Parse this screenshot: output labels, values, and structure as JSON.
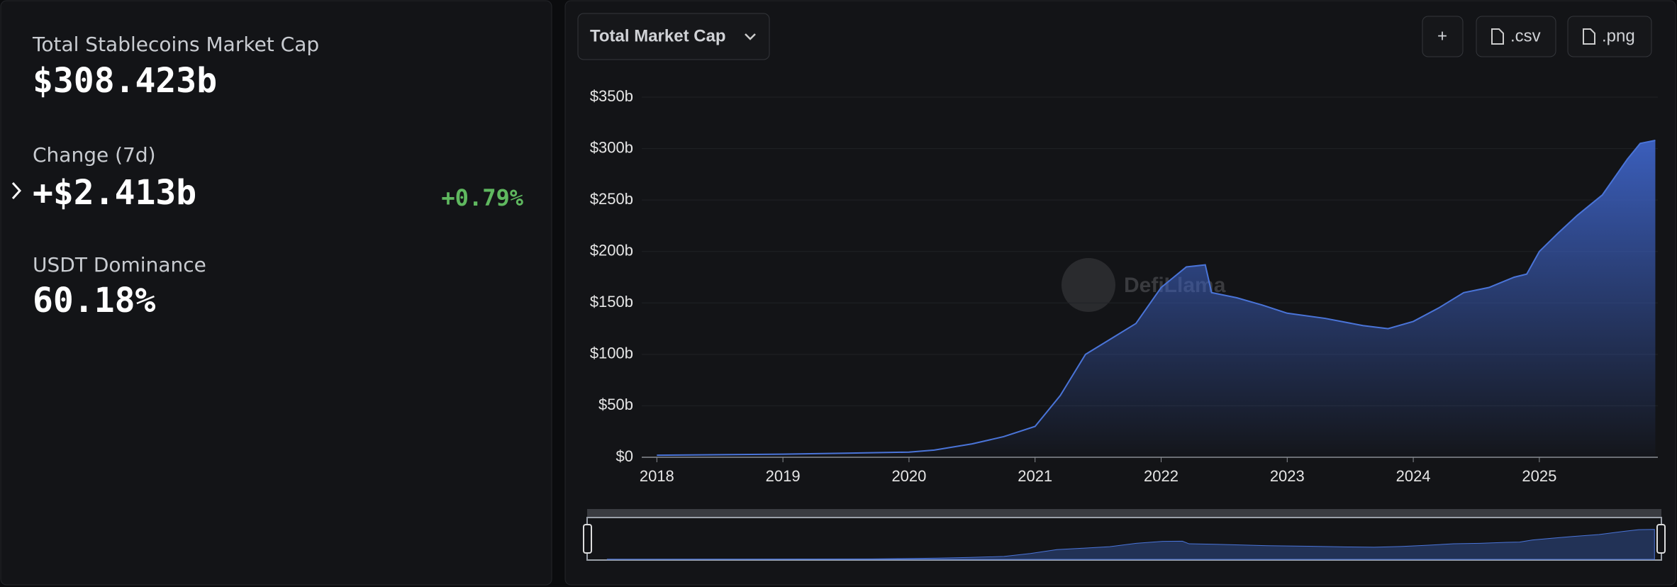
{
  "stats": [
    {
      "label": "Total Stablecoins Market Cap",
      "value": "$308.423b"
    },
    {
      "label": "Change (7d)",
      "value": "+$2.413b",
      "percent": "+0.79%"
    },
    {
      "label": "USDT Dominance",
      "value": "60.18%"
    }
  ],
  "toolbar": {
    "select": "Total Market Cap",
    "add": "+",
    "csv": ".csv",
    "png": ".png"
  },
  "watermark": "DefiLlama",
  "chart_data": {
    "type": "area",
    "color": "#4a74d8",
    "x": [
      2018.0,
      2019.0,
      2019.5,
      2020.0,
      2020.2,
      2020.5,
      2020.75,
      2021.0,
      2021.2,
      2021.4,
      2021.6,
      2021.8,
      2022.0,
      2022.2,
      2022.35,
      2022.4,
      2022.6,
      2022.8,
      2023.0,
      2023.3,
      2023.6,
      2023.8,
      2024.0,
      2024.2,
      2024.4,
      2024.6,
      2024.8,
      2024.9,
      2025.0,
      2025.15,
      2025.3,
      2025.5,
      2025.7,
      2025.8,
      2025.92
    ],
    "series": [
      {
        "name": "Total Market Cap",
        "values": [
          2,
          3,
          4,
          5,
          7,
          13,
          20,
          30,
          60,
          100,
          115,
          130,
          165,
          185,
          187,
          160,
          155,
          148,
          140,
          135,
          128,
          125,
          132,
          145,
          160,
          165,
          175,
          178,
          200,
          218,
          235,
          255,
          290,
          305,
          308
        ]
      }
    ],
    "xlim": [
      2017.88,
      2025.94
    ],
    "xticks": [
      2018,
      2019,
      2020,
      2021,
      2022,
      2023,
      2024,
      2025
    ],
    "ylim": [
      0,
      350
    ],
    "yticks": [
      {
        "value": 0,
        "label": "$0"
      },
      {
        "value": 50,
        "label": "$50b"
      },
      {
        "value": 100,
        "label": "$100b"
      },
      {
        "value": 150,
        "label": "$150b"
      },
      {
        "value": 200,
        "label": "$200b"
      },
      {
        "value": 250,
        "label": "$250b"
      },
      {
        "value": 300,
        "label": "$300b"
      },
      {
        "value": 350,
        "label": "$350b"
      }
    ],
    "grid": true
  }
}
